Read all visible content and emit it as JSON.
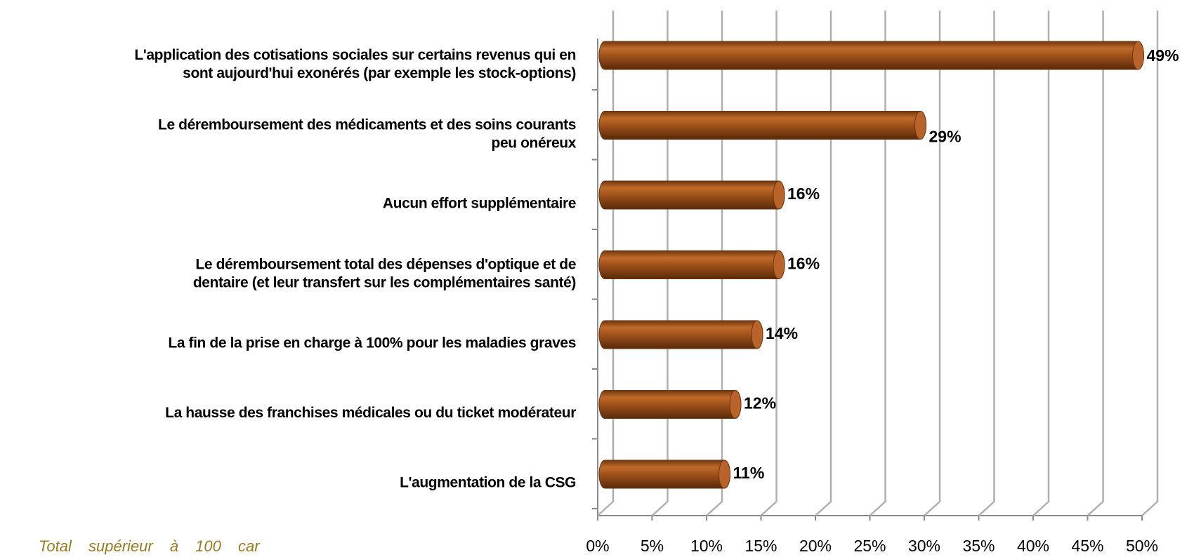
{
  "chart_data": {
    "type": "bar",
    "categories": [
      "L'application des cotisations sociales sur certains revenus qui en\nsont aujourd'hui exonérés (par exemple les stock-options)",
      "Le déremboursement des médicaments et des soins courants\npeu onéreux",
      "Aucun effort supplémentaire",
      "Le déremboursement total des dépenses d'optique et de\ndentaire (et leur transfert sur les complémentaires santé)",
      "La fin de la prise en charge à 100% pour les maladies graves",
      "La hausse des franchises médicales ou du ticket modérateur",
      "L'augmentation de la CSG"
    ],
    "values": [
      49,
      29,
      16,
      16,
      14,
      12,
      11
    ],
    "value_labels": [
      "49%",
      "29%",
      "16%",
      "16%",
      "14%",
      "12%",
      "11%"
    ],
    "color": "#a0521a",
    "xlim": [
      0,
      50
    ],
    "xticks": [
      {
        "value": 0,
        "label": "0%"
      },
      {
        "value": 5,
        "label": "5%"
      },
      {
        "value": 10,
        "label": "10%"
      },
      {
        "value": 15,
        "label": "15%"
      },
      {
        "value": 20,
        "label": "20%"
      },
      {
        "value": 25,
        "label": "25%"
      },
      {
        "value": 30,
        "label": "30%"
      },
      {
        "value": 35,
        "label": "35%"
      },
      {
        "value": 40,
        "label": "40%"
      },
      {
        "value": 45,
        "label": "45%"
      },
      {
        "value": 50,
        "label": "50%"
      }
    ],
    "grid": true,
    "annotation": "Total supérieur à 100 car"
  }
}
